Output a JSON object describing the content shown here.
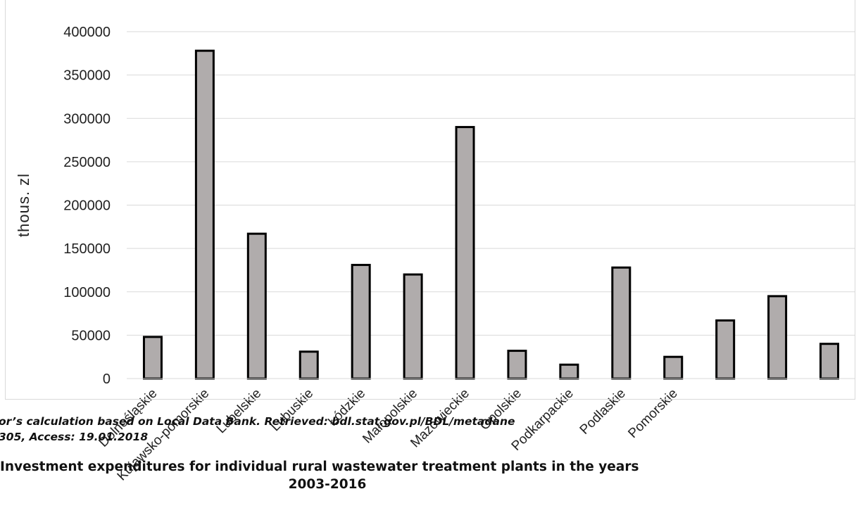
{
  "chart_data": {
    "type": "bar",
    "ylabel": "thous. zl",
    "ylim": [
      0,
      400000
    ],
    "yticks": [
      "0",
      "50000",
      "100000",
      "150000",
      "200000",
      "250000",
      "300000",
      "350000",
      "400000"
    ],
    "grid": true,
    "categories": [
      "Dolnośląskie",
      "Kujawsko-pomorskie",
      "Lubelskie",
      "Lubuskie",
      "Łódzkie",
      "Małopolskie",
      "Mazowieckie",
      "Opolskie",
      "Podkarpackie",
      "Podlaskie",
      "Pomorskie",
      "",
      "",
      ""
    ],
    "tick_labels": [
      "Dolnośląskie",
      "Kujawsko-pomorskie",
      "Lubelskie",
      "Lubuskie",
      "Łódzkie",
      "Małopolskie",
      "Mazowieckie",
      "Opolskie",
      "Podkarpackie",
      "Podlaskie",
      "Pomorskie"
    ],
    "values": [
      48000,
      378000,
      167000,
      31000,
      131000,
      120000,
      290000,
      32000,
      16000,
      128000,
      25000,
      67000,
      95000,
      40000
    ],
    "bar_color": "#b0acac",
    "bar_edge_color": "#000000"
  },
  "source_lines": [
    "or’s calculation based on Local Data Bank. Retrieved: bdl.stat.gov.pl/BDL/metadane",
    "305, Access: 19.01.2018"
  ],
  "title_lines": [
    "Investment expenditures for individual rural wastewater treatment plants in the years",
    "2003-2016"
  ]
}
